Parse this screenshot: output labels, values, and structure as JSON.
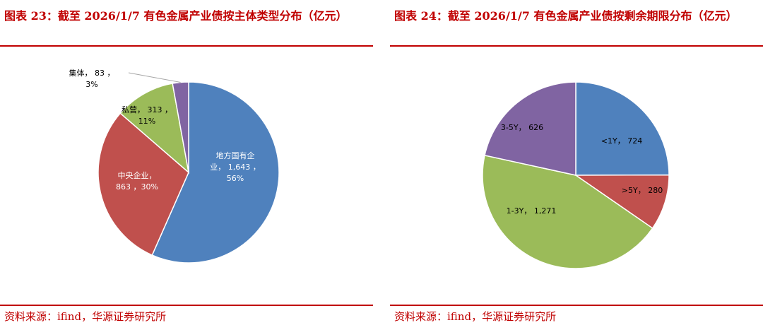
{
  "panels": [
    {
      "title": "图表 23：截至 2026/1/7 有色金属产业债按主体类型分布（亿元）",
      "source": "资料来源：ifind，华源证券研究所"
    },
    {
      "title": "图表 24：截至 2026/1/7 有色金属产业债按剩余期限分布（亿元）",
      "source": "资料来源：ifind，华源证券研究所"
    }
  ],
  "chart_data": [
    {
      "type": "pie",
      "slices": [
        {
          "name": "地方国有企业",
          "value": 1643,
          "label_lines": [
            "地方国有企",
            "业， 1,643 ，",
            "56%"
          ],
          "color": "#4f81bd"
        },
        {
          "name": "中央企业",
          "value": 863,
          "label_lines": [
            "中央企业，",
            "863 ，30%"
          ],
          "color": "#c0504d"
        },
        {
          "name": "私营",
          "value": 313,
          "label_lines": [
            "私营， 313 ，",
            "11%"
          ],
          "color": "#9bbb59"
        },
        {
          "name": "集体",
          "value": 83,
          "label_lines": [
            "集体， 83 ，",
            "3%"
          ],
          "color": "#8064a2"
        }
      ]
    },
    {
      "type": "pie",
      "slices": [
        {
          "name": "<1Y",
          "value": 724,
          "label_lines": [
            "<1Y， 724"
          ],
          "color": "#4f81bd"
        },
        {
          "name": ">5Y",
          "value": 280,
          "label_lines": [
            ">5Y， 280"
          ],
          "color": "#c0504d"
        },
        {
          "name": "1-3Y",
          "value": 1271,
          "label_lines": [
            "1-3Y， 1,271"
          ],
          "color": "#9bbb59"
        },
        {
          "name": "3-5Y",
          "value": 626,
          "label_lines": [
            "3-5Y， 626"
          ],
          "color": "#8064a2"
        }
      ]
    }
  ]
}
